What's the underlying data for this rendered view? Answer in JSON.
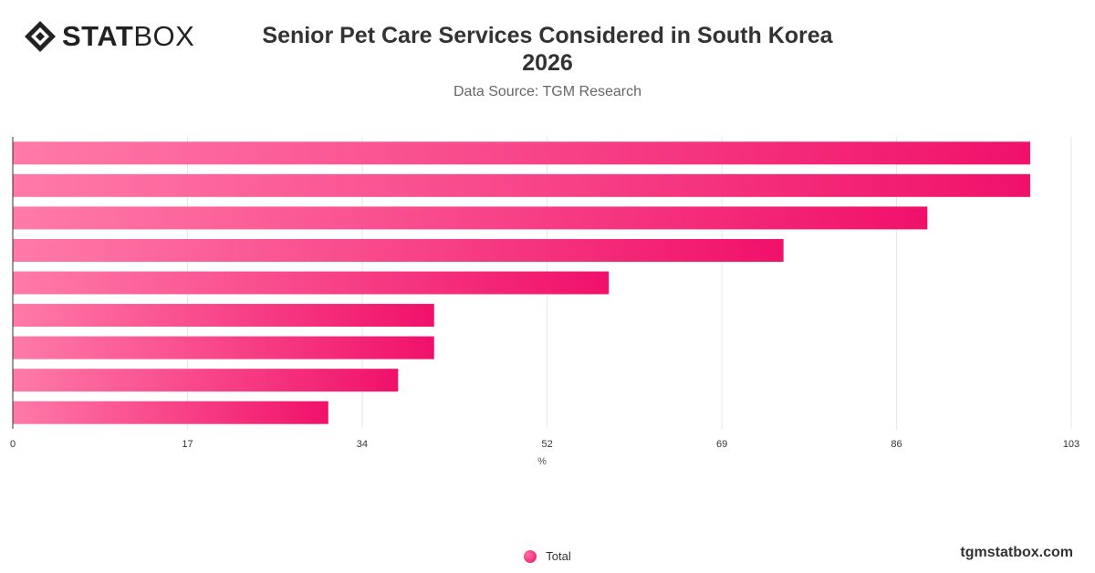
{
  "header": {
    "logo_bold": "STAT",
    "logo_light": "BOX",
    "title_line1": "Senior Pet Care Services Considered in South Korea",
    "title_line2": "2026",
    "subtitle": "Data Source: TGM Research"
  },
  "footer": {
    "site": "tgmstatbox.com"
  },
  "chart_data": {
    "type": "bar",
    "orientation": "horizontal",
    "categories": [
      "",
      "",
      "",
      "",
      "",
      "",
      "",
      "",
      ""
    ],
    "series": [
      {
        "name": "Total",
        "values": [
          99,
          99,
          89,
          75,
          58,
          41,
          41,
          37.5,
          30.7
        ]
      }
    ],
    "xlabel": "%",
    "xlim": [
      0,
      103
    ],
    "xticks": [
      0,
      17,
      34,
      52,
      69,
      86,
      103
    ],
    "grid": true,
    "legend": "bottom-center",
    "colors": {
      "bar_start": "#ff7aa8",
      "bar_end": "#f0116a",
      "grid": "#e6e6e6",
      "axis": "#333333"
    }
  }
}
